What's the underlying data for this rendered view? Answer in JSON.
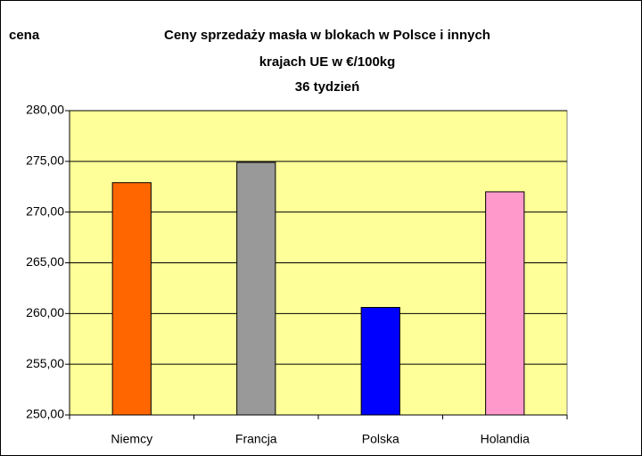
{
  "chart_data": {
    "type": "bar",
    "title": [
      "Ceny sprzedaży masła w blokach w Polsce i  innych",
      "krajach UE w €/100kg",
      "36 tydzień"
    ],
    "y_label": "cena",
    "categories": [
      "Niemcy",
      "Francja",
      "Polska",
      "Holandia"
    ],
    "values": [
      272.9,
      274.9,
      260.6,
      272.0
    ],
    "colors": [
      "#ff6600",
      "#999999",
      "#0000ff",
      "#ff99cc"
    ],
    "ylim": [
      250,
      280
    ],
    "yticks": [
      {
        "value": 250,
        "label": "250,00"
      },
      {
        "value": 255,
        "label": "255,00"
      },
      {
        "value": 260,
        "label": "260,00"
      },
      {
        "value": 265,
        "label": "265,00"
      },
      {
        "value": 270,
        "label": "270,00"
      },
      {
        "value": 275,
        "label": "275,00"
      },
      {
        "value": 280,
        "label": "280,00"
      }
    ],
    "grid": true,
    "plot_background": "#ffff99"
  }
}
